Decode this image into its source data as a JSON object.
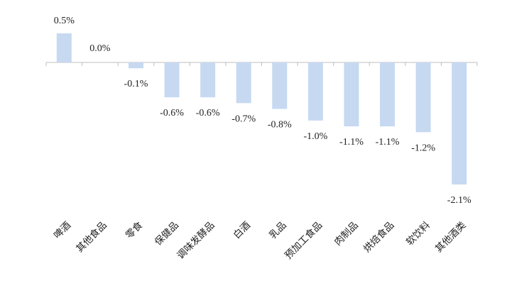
{
  "chart_data": {
    "type": "bar",
    "categories": [
      "啤酒",
      "其他食品",
      "零食",
      "保健品",
      "调味发酵品",
      "白酒",
      "乳品",
      "预加工食品",
      "肉制品",
      "烘焙食品",
      "软饮料",
      "其他酒类"
    ],
    "values": [
      0.5,
      0.0,
      -0.1,
      -0.6,
      -0.6,
      -0.7,
      -0.8,
      -1.0,
      -1.1,
      -1.1,
      -1.2,
      -2.1
    ],
    "data_labels": [
      "0.5%",
      "0.0%",
      "-0.1%",
      "-0.6%",
      "-0.6%",
      "-0.7%",
      "-0.8%",
      "-1.0%",
      "-1.1%",
      "-1.1%",
      "-1.2%",
      "-2.1%"
    ],
    "bar_color": "#c6d9f1",
    "axis_color": "#bfbfbf",
    "ylim": [
      -2.1,
      0.5
    ],
    "grid": false,
    "legend": "none"
  }
}
